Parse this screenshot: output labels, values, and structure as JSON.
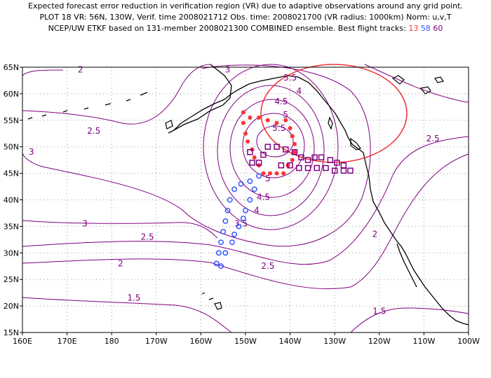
{
  "chart_data": {
    "type": "map-contour",
    "title_lines": [
      "Expected forecast error reduction in verification region (VR) due to adaptive observations around any grid point.",
      "PLOT 18 VR: 56N, 130W, Verif. time 2008021712 Obs. time: 2008021700 (VR radius: 1000km) Norm: u,v,T",
      "NCEP/UW ETKF based on 131-member 2008021300 COMBINED ensemble.  Best flight tracks:"
    ],
    "flight_tracks": [
      {
        "name": "13",
        "color": "#ff3333",
        "marker": "dot",
        "points": [
          [
            -150.5,
            56.5
          ],
          [
            -150.5,
            54.5
          ],
          [
            -150,
            52.5
          ],
          [
            -149.5,
            51
          ],
          [
            -148.5,
            49.5
          ],
          [
            -148,
            48
          ],
          [
            -147,
            46.5
          ],
          [
            -146,
            45
          ],
          [
            -144.5,
            45
          ],
          [
            -143,
            45
          ],
          [
            -141.5,
            45
          ],
          [
            -140.5,
            46.5
          ],
          [
            -139.5,
            47.5
          ],
          [
            -139,
            49
          ],
          [
            -139,
            50.5
          ],
          [
            -139.5,
            52
          ],
          [
            -140,
            53.5
          ],
          [
            -141,
            55
          ],
          [
            -143,
            54.5
          ],
          [
            -145,
            55
          ],
          [
            -147,
            55.5
          ],
          [
            -149,
            55.5
          ]
        ]
      },
      {
        "name": "58",
        "color": "#3355ff",
        "marker": "circle",
        "points": [
          [
            -147,
            44.5
          ],
          [
            -149,
            43.5
          ],
          [
            -151,
            43
          ],
          [
            -152.5,
            42
          ],
          [
            -153.5,
            40
          ],
          [
            -154,
            38
          ],
          [
            -154.5,
            36
          ],
          [
            -155,
            34
          ],
          [
            -155.5,
            32
          ],
          [
            -156,
            30
          ],
          [
            -156.5,
            28
          ],
          [
            -155.5,
            27.5
          ],
          [
            -154.5,
            30
          ],
          [
            -153,
            32
          ],
          [
            -152.5,
            33.5
          ],
          [
            -151.5,
            35
          ],
          [
            -150.5,
            36.5
          ],
          [
            -150,
            38
          ],
          [
            -149,
            40
          ],
          [
            -148,
            42
          ]
        ]
      },
      {
        "name": "60",
        "color": "#800080",
        "marker": "square",
        "points": [
          [
            -149,
            49
          ],
          [
            -148.5,
            47
          ],
          [
            -147,
            47
          ],
          [
            -146,
            48.5
          ],
          [
            -145,
            50
          ],
          [
            -143,
            50
          ],
          [
            -141,
            49.5
          ],
          [
            -139,
            49
          ],
          [
            -137.5,
            48
          ],
          [
            -136,
            47.5
          ],
          [
            -134.5,
            48
          ],
          [
            -133,
            48
          ],
          [
            -131,
            47.5
          ],
          [
            -129.5,
            47
          ],
          [
            -128,
            46.5
          ],
          [
            -126.5,
            45.5
          ],
          [
            -128,
            45.5
          ],
          [
            -130,
            45.5
          ],
          [
            -132,
            46
          ],
          [
            -134,
            46
          ],
          [
            -136,
            46
          ],
          [
            -138,
            46
          ],
          [
            -140,
            46.5
          ],
          [
            -142,
            46.5
          ]
        ]
      }
    ],
    "verification_region": {
      "center": [
        -130,
        56
      ],
      "radius_km": 1000
    },
    "contour_labels": [
      {
        "text": "2",
        "lon": -187,
        "lat": 64
      },
      {
        "text": "3",
        "lon": -154,
        "lat": 64
      },
      {
        "text": "3.5",
        "lon": -140,
        "lat": 62.5
      },
      {
        "text": "4",
        "lon": -138,
        "lat": 60
      },
      {
        "text": "4.5",
        "lon": -142,
        "lat": 58
      },
      {
        "text": "5",
        "lon": -141,
        "lat": 55.5
      },
      {
        "text": "5.5",
        "lon": -142.5,
        "lat": 53
      },
      {
        "text": "5",
        "lon": -145,
        "lat": 43.5
      },
      {
        "text": "4.5",
        "lon": -146,
        "lat": 40
      },
      {
        "text": "4",
        "lon": -147.5,
        "lat": 37.5
      },
      {
        "text": "3.5",
        "lon": -151,
        "lat": 35
      },
      {
        "text": "2.5",
        "lon": -184,
        "lat": 52.5
      },
      {
        "text": "3",
        "lon": -198,
        "lat": 48.5
      },
      {
        "text": "3",
        "lon": -186,
        "lat": 35
      },
      {
        "text": "2.5",
        "lon": -172,
        "lat": 32.5
      },
      {
        "text": "2",
        "lon": -178,
        "lat": 27.5
      },
      {
        "text": "1.5",
        "lon": -175,
        "lat": 21
      },
      {
        "text": "2.5",
        "lon": -145,
        "lat": 27
      },
      {
        "text": "2",
        "lon": -121,
        "lat": 33
      },
      {
        "text": "2.5",
        "lon": -108,
        "lat": 51
      },
      {
        "text": "1.5",
        "lon": -120,
        "lat": 18.5
      }
    ],
    "x_ticks": [
      "160E",
      "170E",
      "180",
      "170W",
      "160W",
      "150W",
      "140W",
      "130W",
      "120W",
      "110W",
      "100W"
    ],
    "y_ticks": [
      "15N",
      "20N",
      "25N",
      "30N",
      "35N",
      "40N",
      "45N",
      "50N",
      "55N",
      "60N",
      "65N"
    ],
    "xlim": [
      -200,
      -100
    ],
    "ylim": [
      15,
      65
    ],
    "grid": "dotted"
  }
}
